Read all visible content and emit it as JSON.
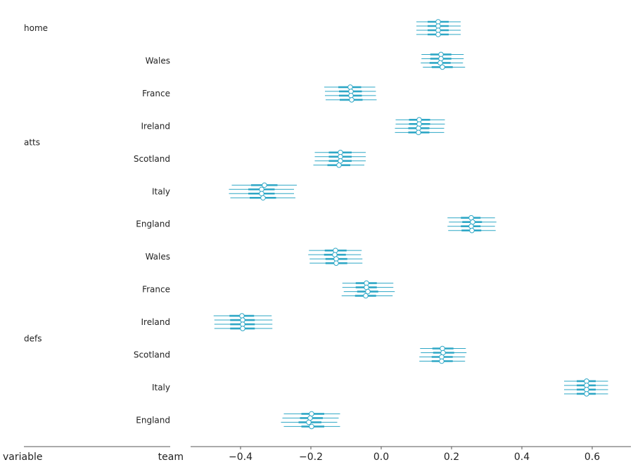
{
  "chart_data": {
    "type": "forest",
    "xlim": [
      -0.542,
      0.71
    ],
    "xticks": [
      -0.4,
      -0.2,
      0.0,
      0.2,
      0.4,
      0.6
    ],
    "xtick_labels": [
      "−0.4",
      "−0.2",
      "0.0",
      "0.2",
      "0.4",
      "0.6"
    ],
    "column_labels": {
      "variable": "variable",
      "team": "team"
    },
    "grid": false,
    "color": "#2ea7c6",
    "marker_fill": "#ffffff",
    "groups": [
      {
        "variable": "home",
        "start": 0,
        "count": 1
      },
      {
        "variable": "atts",
        "start": 1,
        "count": 6
      },
      {
        "variable": "defs",
        "start": 7,
        "count": 6
      }
    ],
    "rows": [
      {
        "variable": "home",
        "team": "",
        "chain_medians": [
          0.162,
          0.162,
          0.162,
          0.162
        ],
        "hdi_50": [
          0.132,
          0.192
        ],
        "hdi_94": [
          0.1,
          0.226
        ]
      },
      {
        "variable": "atts",
        "team": "Wales",
        "chain_medians": [
          0.17,
          0.17,
          0.168,
          0.174
        ],
        "hdi_50": [
          0.14,
          0.2
        ],
        "hdi_94": [
          0.115,
          0.235
        ]
      },
      {
        "variable": "atts",
        "team": "France",
        "chain_medians": [
          -0.088,
          -0.086,
          -0.086,
          -0.084
        ],
        "hdi_50": [
          -0.12,
          -0.055
        ],
        "hdi_94": [
          -0.16,
          -0.015
        ]
      },
      {
        "variable": "atts",
        "team": "Ireland",
        "chain_medians": [
          0.108,
          0.108,
          0.106,
          0.106
        ],
        "hdi_50": [
          0.078,
          0.138
        ],
        "hdi_94": [
          0.04,
          0.18
        ]
      },
      {
        "variable": "atts",
        "team": "Scotland",
        "chain_medians": [
          -0.116,
          -0.116,
          -0.116,
          -0.12
        ],
        "hdi_50": [
          -0.15,
          -0.085
        ],
        "hdi_94": [
          -0.19,
          -0.045
        ]
      },
      {
        "variable": "atts",
        "team": "Italy",
        "chain_medians": [
          -0.332,
          -0.34,
          -0.34,
          -0.336
        ],
        "hdi_50": [
          -0.375,
          -0.3
        ],
        "hdi_94": [
          -0.43,
          -0.245
        ]
      },
      {
        "variable": "atts",
        "team": "England",
        "chain_medians": [
          0.256,
          0.26,
          0.256,
          0.258
        ],
        "hdi_50": [
          0.228,
          0.284
        ],
        "hdi_94": [
          0.19,
          0.325
        ]
      },
      {
        "variable": "defs",
        "team": "Wales",
        "chain_medians": [
          -0.13,
          -0.132,
          -0.128,
          -0.128
        ],
        "hdi_50": [
          -0.16,
          -0.098
        ],
        "hdi_94": [
          -0.205,
          -0.055
        ]
      },
      {
        "variable": "defs",
        "team": "France",
        "chain_medians": [
          -0.042,
          -0.042,
          -0.038,
          -0.044
        ],
        "hdi_50": [
          -0.072,
          -0.012
        ],
        "hdi_94": [
          -0.11,
          0.035
        ]
      },
      {
        "variable": "defs",
        "team": "Ireland",
        "chain_medians": [
          -0.396,
          -0.394,
          -0.394,
          -0.394
        ],
        "hdi_50": [
          -0.43,
          -0.36
        ],
        "hdi_94": [
          -0.475,
          -0.31
        ]
      },
      {
        "variable": "defs",
        "team": "Scotland",
        "chain_medians": [
          0.174,
          0.176,
          0.172,
          0.172
        ],
        "hdi_50": [
          0.145,
          0.205
        ],
        "hdi_94": [
          0.11,
          0.24
        ]
      },
      {
        "variable": "defs",
        "team": "Italy",
        "chain_medians": [
          0.584,
          0.584,
          0.584,
          0.584
        ],
        "hdi_50": [
          0.556,
          0.61
        ],
        "hdi_94": [
          0.52,
          0.645
        ]
      },
      {
        "variable": "defs",
        "team": "England",
        "chain_medians": [
          -0.198,
          -0.202,
          -0.206,
          -0.198
        ],
        "hdi_50": [
          -0.23,
          -0.165
        ],
        "hdi_94": [
          -0.28,
          -0.12
        ]
      }
    ]
  }
}
